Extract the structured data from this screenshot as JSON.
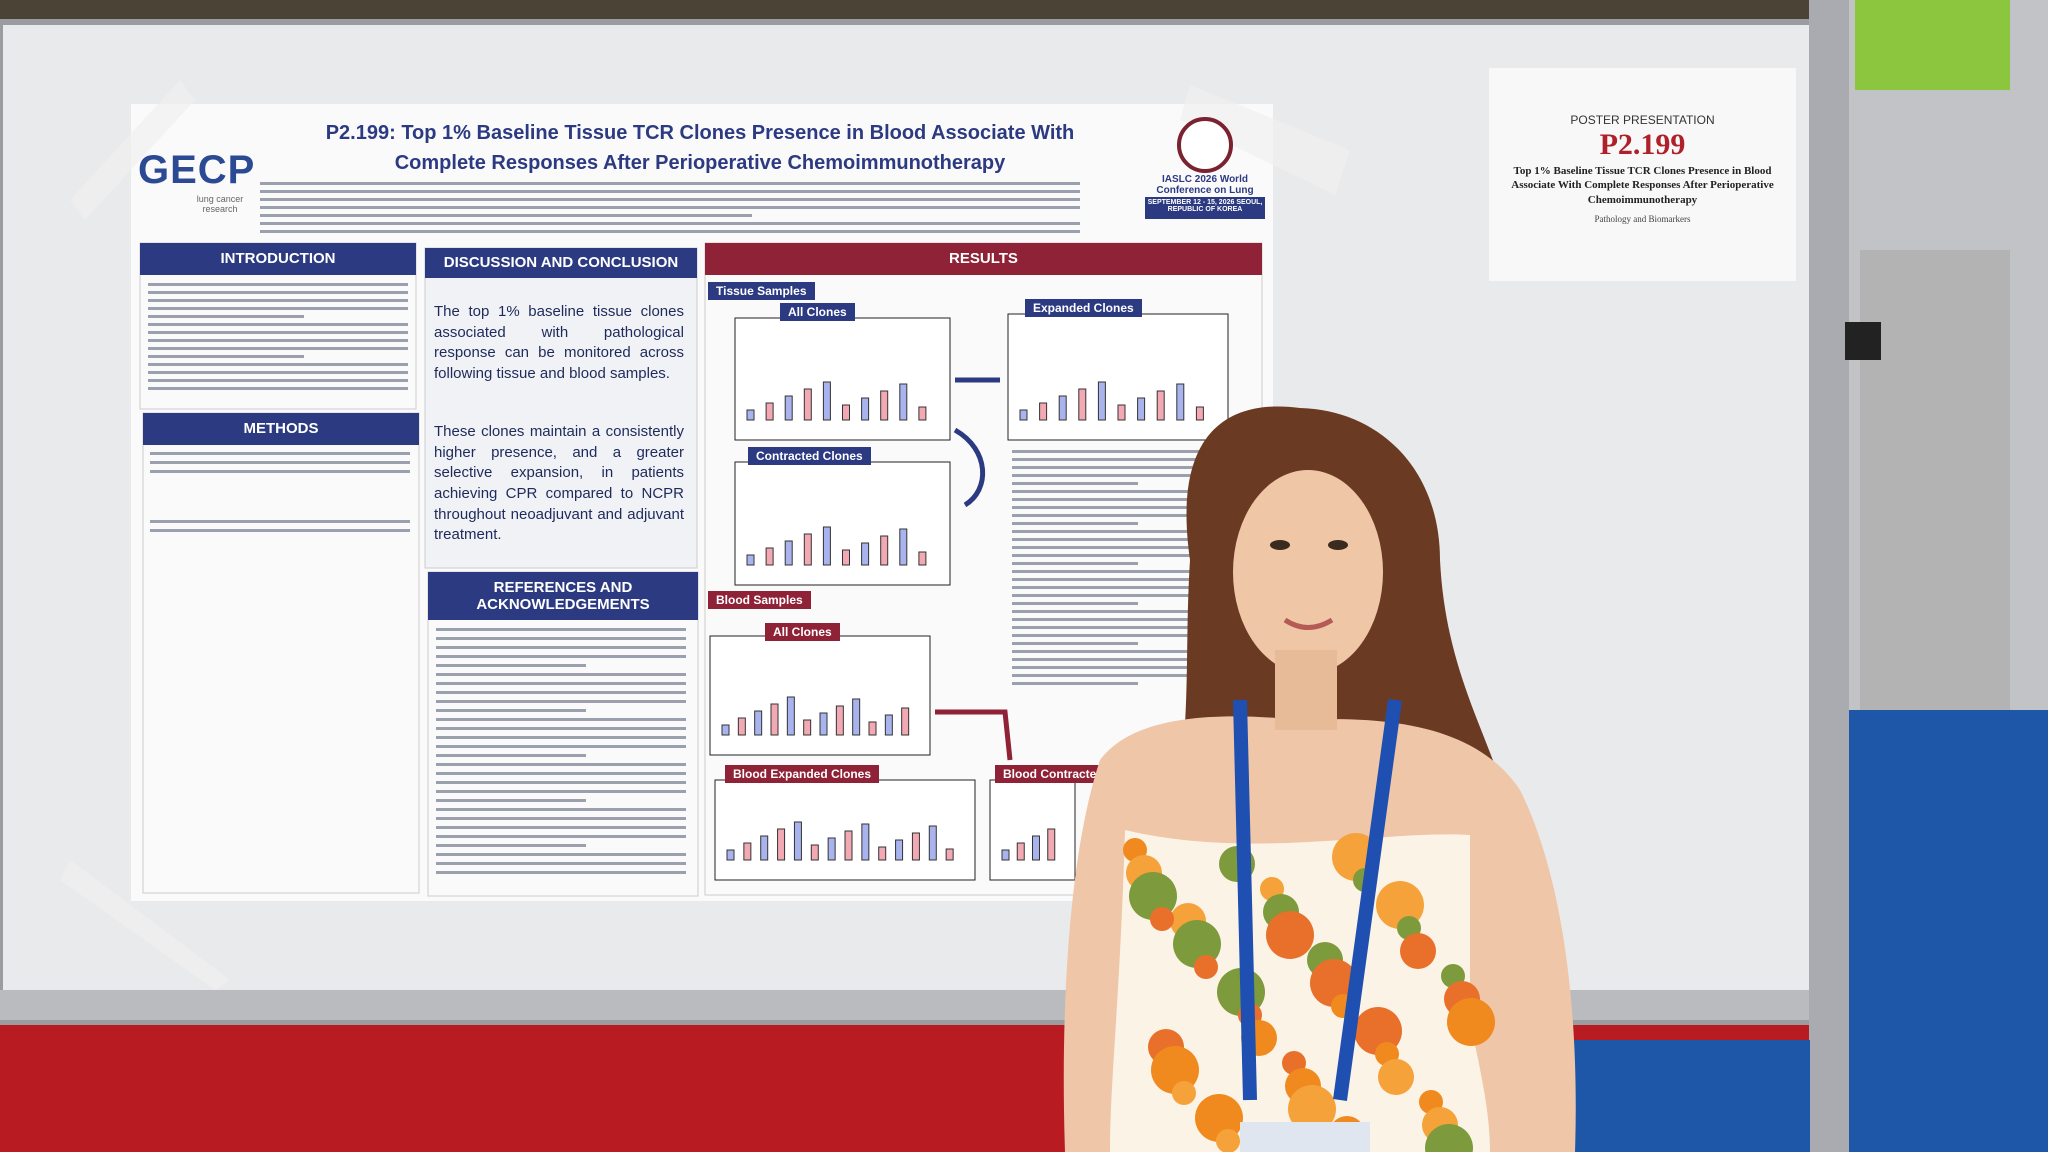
{
  "poster": {
    "logo": "GECP",
    "logo_subtitle": "lung cancer research",
    "title": "P2.199: Top 1% Baseline Tissue TCR Clones Presence in Blood Associate With Complete Responses After Perioperative Chemoimmunotherapy",
    "conference": "IASLC 2026 World Conference on Lung Cancer",
    "conference_dates": "SEPTEMBER 12 - 15, 2026 SEOUL, REPUBLIC OF KOREA",
    "sections": {
      "introduction": "INTRODUCTION",
      "methods": "METHODS",
      "discussion": "DISCUSSION AND CONCLUSION",
      "references": "REFERENCES AND ACKNOWLEDGEMENTS",
      "results": "RESULTS"
    },
    "conclusion": [
      "The top 1% baseline tissue clones associated with pathological response can be monitored across following tissue and blood samples.",
      "These clones maintain a consistently higher presence, and a greater selective expansion, in patients achieving CPR compared to NCPR throughout neoadjuvant and adjuvant treatment."
    ],
    "results": {
      "tissue_samples": "Tissue Samples",
      "all_clones": "All Clones",
      "expanded_clones": "Expanded Clones",
      "contracted_clones": "Contracted Clones",
      "blood_samples": "Blood Samples",
      "blood_all_clones": "All Clones",
      "blood_expanded_clones": "Blood Expanded Clones",
      "blood_contracted_clones": "Blood Contracted"
    }
  },
  "sign": {
    "label": "POSTER PRESENTATION",
    "code": "P2.199",
    "title": "Top 1% Baseline Tissue TCR Clones Presence in Blood Associate With Complete Responses After Perioperative Chemoimmunotherapy",
    "topic": "Pathology and Biomarkers"
  }
}
